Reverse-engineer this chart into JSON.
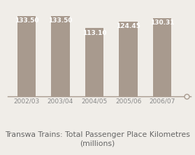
{
  "categories": [
    "2002/03",
    "2003/04",
    "2004/05",
    "2005/06",
    "2006/07"
  ],
  "values": [
    133.5,
    133.5,
    113.1,
    124.45,
    130.31
  ],
  "bar_color": "#a89a8e",
  "label_color": "#ffffff",
  "title_line1": "Transwa Trains: Total Passenger Place Kilometres",
  "title_line2": "(millions)",
  "title_color": "#666666",
  "background_color": "#f0ede8",
  "axis_color": "#a89a8e",
  "tick_color": "#888888",
  "ylim": [
    0,
    155
  ],
  "bar_width": 0.55,
  "label_fontsize": 6.5,
  "title_fontsize": 7.8,
  "tick_fontsize": 6.5
}
